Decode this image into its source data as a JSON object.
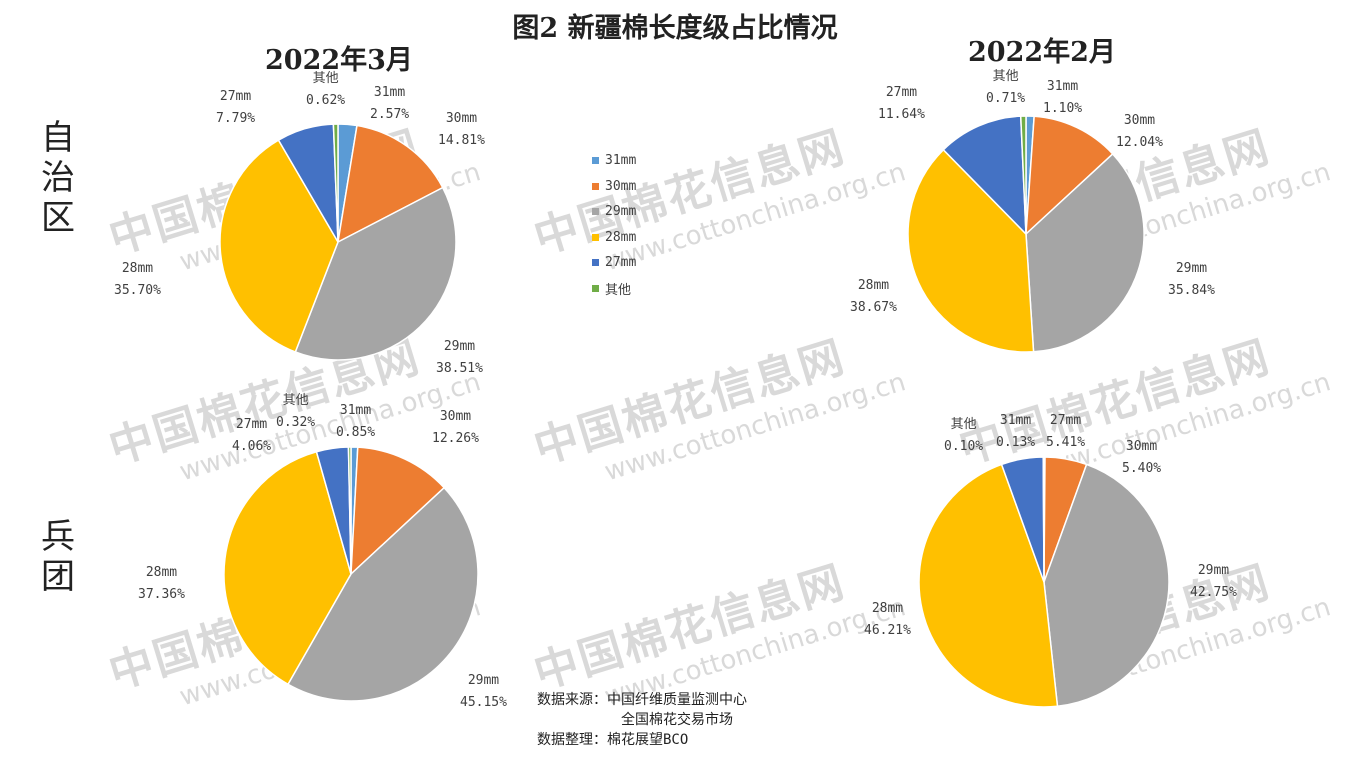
{
  "figure_title": "图2  新疆棉长度级占比情况",
  "period_titles": {
    "mar": "2022年3月",
    "feb": "2022年2月"
  },
  "row_labels": {
    "top": "自治区",
    "bottom": "兵团"
  },
  "watermark": {
    "text": "中国棉花信息网",
    "url": "www.cottonchina.org.cn"
  },
  "source": {
    "line1": "数据来源：中国纤维质量监测中心",
    "line2": "全国棉花交易市场",
    "line3": "数据整理：棉花展望BCO"
  },
  "legend": [
    {
      "name": "31mm",
      "color": "#5b9bd5"
    },
    {
      "name": "30mm",
      "color": "#ed7d31"
    },
    {
      "name": "29mm",
      "color": "#a5a5a5"
    },
    {
      "name": "28mm",
      "color": "#ffc000"
    },
    {
      "name": "27mm",
      "color": "#4472c4"
    },
    {
      "name": "其他",
      "color": "#70ad47"
    }
  ],
  "chart_data": [
    {
      "type": "pie",
      "title": "2022年3月 自治区",
      "slices": [
        {
          "name": "31mm",
          "value": 2.57,
          "label": "2.57%",
          "color": "#5b9bd5"
        },
        {
          "name": "30mm",
          "value": 14.81,
          "label": "14.81%",
          "color": "#ed7d31"
        },
        {
          "name": "29mm",
          "value": 38.51,
          "label": "38.51%",
          "color": "#a5a5a5"
        },
        {
          "name": "28mm",
          "value": 35.7,
          "label": "35.70%",
          "color": "#ffc000"
        },
        {
          "name": "27mm",
          "value": 7.79,
          "label": "7.79%",
          "color": "#4472c4"
        },
        {
          "name": "其他",
          "value": 0.62,
          "label": "0.62%",
          "color": "#70ad47"
        }
      ]
    },
    {
      "type": "pie",
      "title": "2022年2月 自治区",
      "slices": [
        {
          "name": "31mm",
          "value": 1.1,
          "label": "1.10%",
          "color": "#5b9bd5"
        },
        {
          "name": "30mm",
          "value": 12.04,
          "label": "12.04%",
          "color": "#ed7d31"
        },
        {
          "name": "29mm",
          "value": 35.84,
          "label": "35.84%",
          "color": "#a5a5a5"
        },
        {
          "name": "28mm",
          "value": 38.67,
          "label": "38.67%",
          "color": "#ffc000"
        },
        {
          "name": "27mm",
          "value": 11.64,
          "label": "11.64%",
          "color": "#4472c4"
        },
        {
          "name": "其他",
          "value": 0.71,
          "label": "0.71%",
          "color": "#70ad47"
        }
      ]
    },
    {
      "type": "pie",
      "title": "2022年3月 兵团",
      "slices": [
        {
          "name": "31mm",
          "value": 0.85,
          "label": "0.85%",
          "color": "#5b9bd5"
        },
        {
          "name": "30mm",
          "value": 12.26,
          "label": "12.26%",
          "color": "#ed7d31"
        },
        {
          "name": "29mm",
          "value": 45.15,
          "label": "45.15%",
          "color": "#a5a5a5"
        },
        {
          "name": "28mm",
          "value": 37.36,
          "label": "37.36%",
          "color": "#ffc000"
        },
        {
          "name": "27mm",
          "value": 4.06,
          "label": "4.06%",
          "color": "#4472c4"
        },
        {
          "name": "其他",
          "value": 0.32,
          "label": "0.32%",
          "color": "#70ad47"
        }
      ]
    },
    {
      "type": "pie",
      "title": "2022年2月 兵团",
      "slices": [
        {
          "name": "31mm",
          "value": 0.13,
          "label": "0.13%",
          "color": "#5b9bd5"
        },
        {
          "name": "30mm",
          "value": 5.4,
          "label": "5.40%",
          "color": "#ed7d31"
        },
        {
          "name": "29mm",
          "value": 42.75,
          "label": "42.75%",
          "color": "#a5a5a5"
        },
        {
          "name": "28mm",
          "value": 46.21,
          "label": "46.21%",
          "color": "#ffc000"
        },
        {
          "name": "27mm",
          "value": 5.41,
          "label": "5.41%",
          "color": "#4472c4"
        },
        {
          "name": "其他",
          "value": 0.1,
          "label": "0.10%",
          "color": "#70ad47"
        }
      ]
    }
  ]
}
